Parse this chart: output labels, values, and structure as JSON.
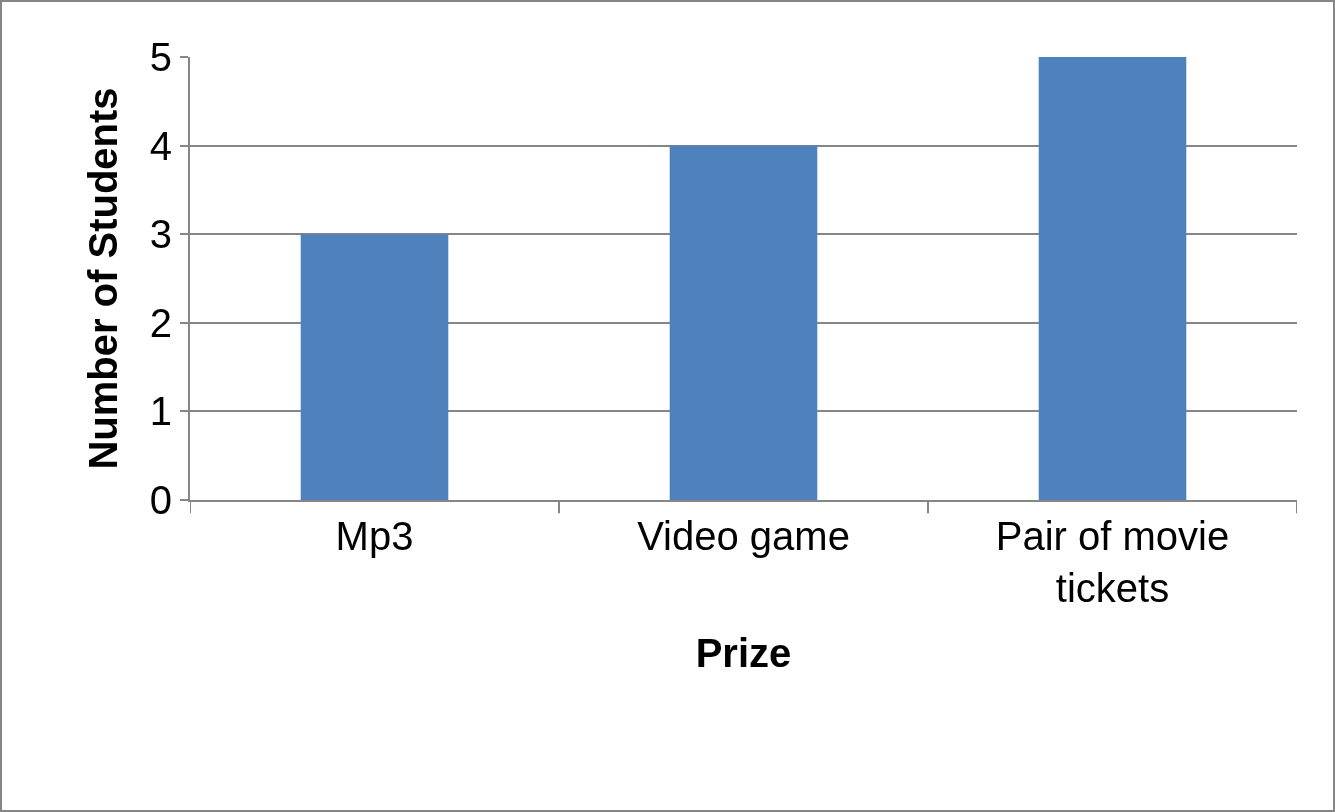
{
  "chart_data": {
    "type": "bar",
    "xlabel": "Prize",
    "ylabel": "Number of Students",
    "categories": [
      "Mp3",
      "Video game",
      "Pair of movie tickets"
    ],
    "values": [
      3,
      4,
      5
    ],
    "color": "#4f81bd",
    "ylim": [
      0,
      5
    ],
    "yticks": [
      0,
      1,
      2,
      3,
      4,
      5
    ],
    "grid": "y"
  }
}
